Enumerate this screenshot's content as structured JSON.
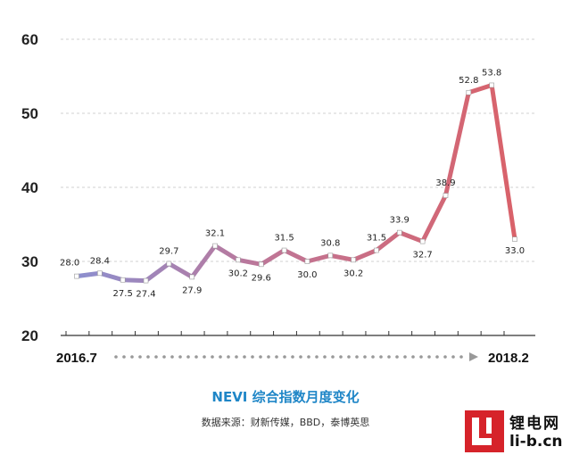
{
  "chart_data": {
    "type": "line",
    "title": "NEVI 综合指数月度变化",
    "subtitle": "数据来源：财新传媒，BBD，泰博英思",
    "x_start_label": "2016.7",
    "x_end_label": "2018.2",
    "values": [
      28.0,
      28.4,
      27.5,
      27.4,
      29.7,
      27.9,
      32.1,
      30.2,
      29.6,
      31.5,
      30.0,
      30.8,
      30.2,
      31.5,
      33.9,
      32.7,
      38.9,
      52.8,
      53.8,
      33.0
    ],
    "value_labels": [
      "28.0",
      "28.4",
      "27.5",
      "27.4",
      "29.7",
      "27.9",
      "32.1",
      "30.2",
      "29.6",
      "31.5",
      "30.0",
      "30.8",
      "30.2",
      "31.5",
      "33.9",
      "32.7",
      "38.9",
      "52.8",
      "53.8",
      "33.0"
    ],
    "yticks": [
      "20",
      "30",
      "40",
      "50",
      "60"
    ],
    "ylim": [
      20,
      60
    ],
    "grid": true,
    "line_color_start": "#8c8fcf",
    "line_color_end": "#d9626a"
  },
  "watermark": {
    "name": "锂电网",
    "url": "li-b.cn"
  }
}
